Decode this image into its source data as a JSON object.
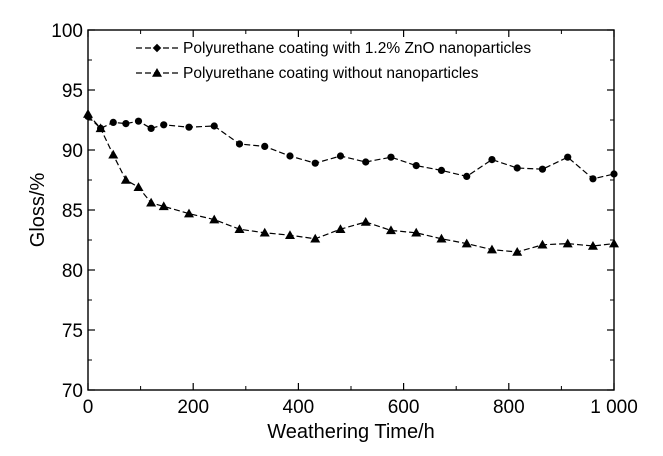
{
  "chart_data": {
    "type": "line",
    "title": "",
    "xlabel": "Weathering Time/h",
    "ylabel": "Gloss/%",
    "xlim": [
      0,
      1000
    ],
    "ylim": [
      70,
      100
    ],
    "grid": false,
    "legend_position": "top-right",
    "x_ticks": [
      {
        "value": 0,
        "label": "0"
      },
      {
        "value": 200,
        "label": "200"
      },
      {
        "value": 400,
        "label": "400"
      },
      {
        "value": 600,
        "label": "600"
      },
      {
        "value": 800,
        "label": "800"
      },
      {
        "value": 1000,
        "label": "1 000"
      }
    ],
    "y_ticks": [
      {
        "value": 70,
        "label": "70"
      },
      {
        "value": 75,
        "label": "75"
      },
      {
        "value": 80,
        "label": "80"
      },
      {
        "value": 85,
        "label": "85"
      },
      {
        "value": 90,
        "label": "90"
      },
      {
        "value": 95,
        "label": "95"
      },
      {
        "value": 100,
        "label": "100"
      }
    ],
    "series": [
      {
        "name": "Polyurethane coating with 1.2% ZnO nanoparticles",
        "marker": "circle",
        "legend_marker": "diamond",
        "color": "#000000",
        "x": [
          0,
          24,
          48,
          72,
          96,
          120,
          144,
          192,
          240,
          288,
          336,
          384,
          432,
          480,
          528,
          576,
          624,
          672,
          720,
          768,
          816,
          864,
          912,
          960,
          1000
        ],
        "y": [
          92.8,
          91.8,
          92.3,
          92.2,
          92.4,
          91.8,
          92.1,
          91.9,
          92.0,
          90.5,
          90.3,
          89.5,
          88.9,
          89.5,
          89.0,
          89.4,
          88.7,
          88.3,
          87.8,
          89.2,
          88.5,
          88.4,
          89.4,
          87.6,
          88.0
        ]
      },
      {
        "name": "Polyurethane coating without nanoparticles",
        "marker": "triangle",
        "legend_marker": "triangle",
        "color": "#000000",
        "x": [
          0,
          24,
          48,
          72,
          96,
          120,
          144,
          192,
          240,
          288,
          336,
          384,
          432,
          480,
          528,
          576,
          624,
          672,
          720,
          768,
          816,
          864,
          912,
          960,
          1000
        ],
        "y": [
          93.0,
          91.8,
          89.6,
          87.5,
          86.9,
          85.6,
          85.3,
          84.7,
          84.2,
          83.4,
          83.1,
          82.9,
          82.6,
          83.4,
          84.0,
          83.3,
          83.1,
          82.6,
          82.2,
          81.7,
          81.5,
          82.1,
          82.2,
          82.0,
          82.2
        ]
      }
    ]
  }
}
